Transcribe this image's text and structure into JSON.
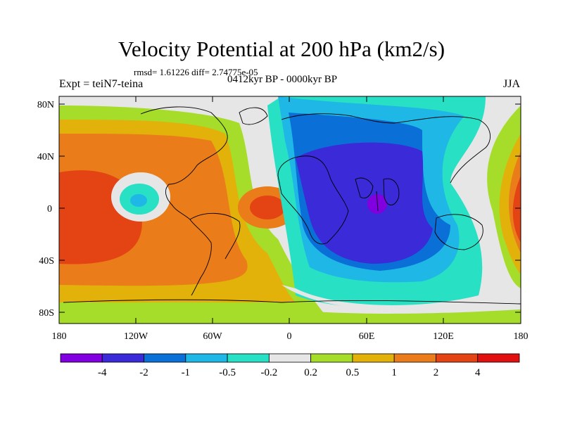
{
  "title": "Velocity Potential at 200 hPa (km2/s)",
  "stats_line": "rmsd= 1.61226 diff= 2.74775e-05",
  "left_label": "Expt = teiN7-teina",
  "center_label": "0412kyr BP - 0000kyr BP",
  "right_label": "JJA",
  "lat_ticks": [
    "80N",
    "40N",
    "0",
    "40S",
    "80S"
  ],
  "lon_ticks": [
    "180",
    "120W",
    "60W",
    "0",
    "60E",
    "120E",
    "180"
  ],
  "colorbar": {
    "labels": [
      "-4",
      "-2",
      "-1",
      "-0.5",
      "-0.2",
      "0.2",
      "0.5",
      "1",
      "2",
      "4"
    ],
    "colors": [
      "#8000e0",
      "#3a2ad8",
      "#0b6fd8",
      "#1fb8e6",
      "#28e0c4",
      "#e6e6e6",
      "#a6dc2a",
      "#e2b20a",
      "#ea7d1a",
      "#e44414",
      "#e01010"
    ]
  }
}
